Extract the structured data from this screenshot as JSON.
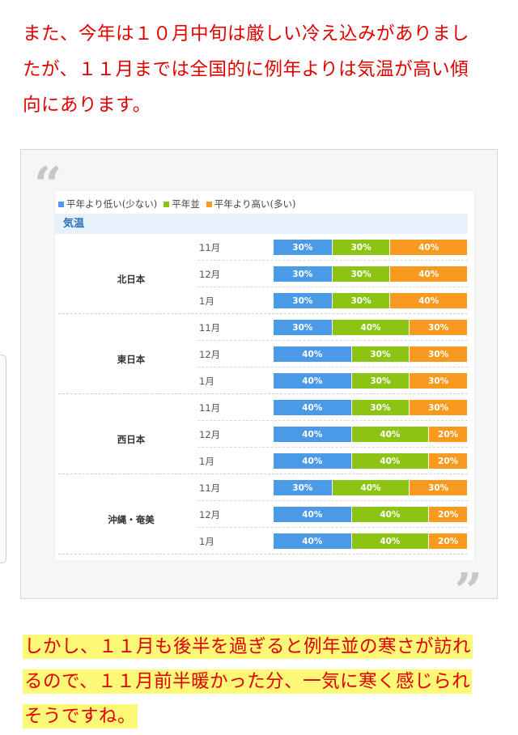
{
  "intro": {
    "lines": [
      "また、今年は１０月中旬は厳しい冷え込みがありまし",
      "たが、１１月までは全国的に例年よりは気温が高い傾",
      "向にあります。"
    ]
  },
  "quote": {
    "open_mark": "“",
    "close_mark": "”"
  },
  "chart_data": {
    "type": "table",
    "title": "気温",
    "legend": [
      "平年より低い(少ない)",
      "平年並",
      "平年より高い(多い)"
    ],
    "colors": {
      "low": "#4a9ae8",
      "normal": "#8cc414",
      "high": "#f79a1f"
    },
    "regions": [
      {
        "name": "北日本",
        "months": [
          {
            "label": "11月",
            "values": [
              30,
              30,
              40
            ]
          },
          {
            "label": "12月",
            "values": [
              30,
              30,
              40
            ]
          },
          {
            "label": "1月",
            "values": [
              30,
              30,
              40
            ]
          }
        ]
      },
      {
        "name": "東日本",
        "months": [
          {
            "label": "11月",
            "values": [
              30,
              40,
              30
            ]
          },
          {
            "label": "12月",
            "values": [
              40,
              30,
              30
            ]
          },
          {
            "label": "1月",
            "values": [
              40,
              30,
              30
            ]
          }
        ]
      },
      {
        "name": "西日本",
        "months": [
          {
            "label": "11月",
            "values": [
              40,
              30,
              30
            ]
          },
          {
            "label": "12月",
            "values": [
              40,
              40,
              20
            ]
          },
          {
            "label": "1月",
            "values": [
              40,
              40,
              20
            ]
          }
        ]
      },
      {
        "name": "沖縄・奄美",
        "months": [
          {
            "label": "11月",
            "values": [
              30,
              40,
              30
            ]
          },
          {
            "label": "12月",
            "values": [
              40,
              40,
              20
            ]
          },
          {
            "label": "1月",
            "values": [
              40,
              40,
              20
            ]
          }
        ]
      }
    ]
  },
  "closing": {
    "lines": [
      "しかし、１１月も後半を過ぎると例年並の寒さが訪れ",
      "るので、１１月前半暖かった分、一気に寒く感じられ",
      "そうですね。"
    ]
  }
}
